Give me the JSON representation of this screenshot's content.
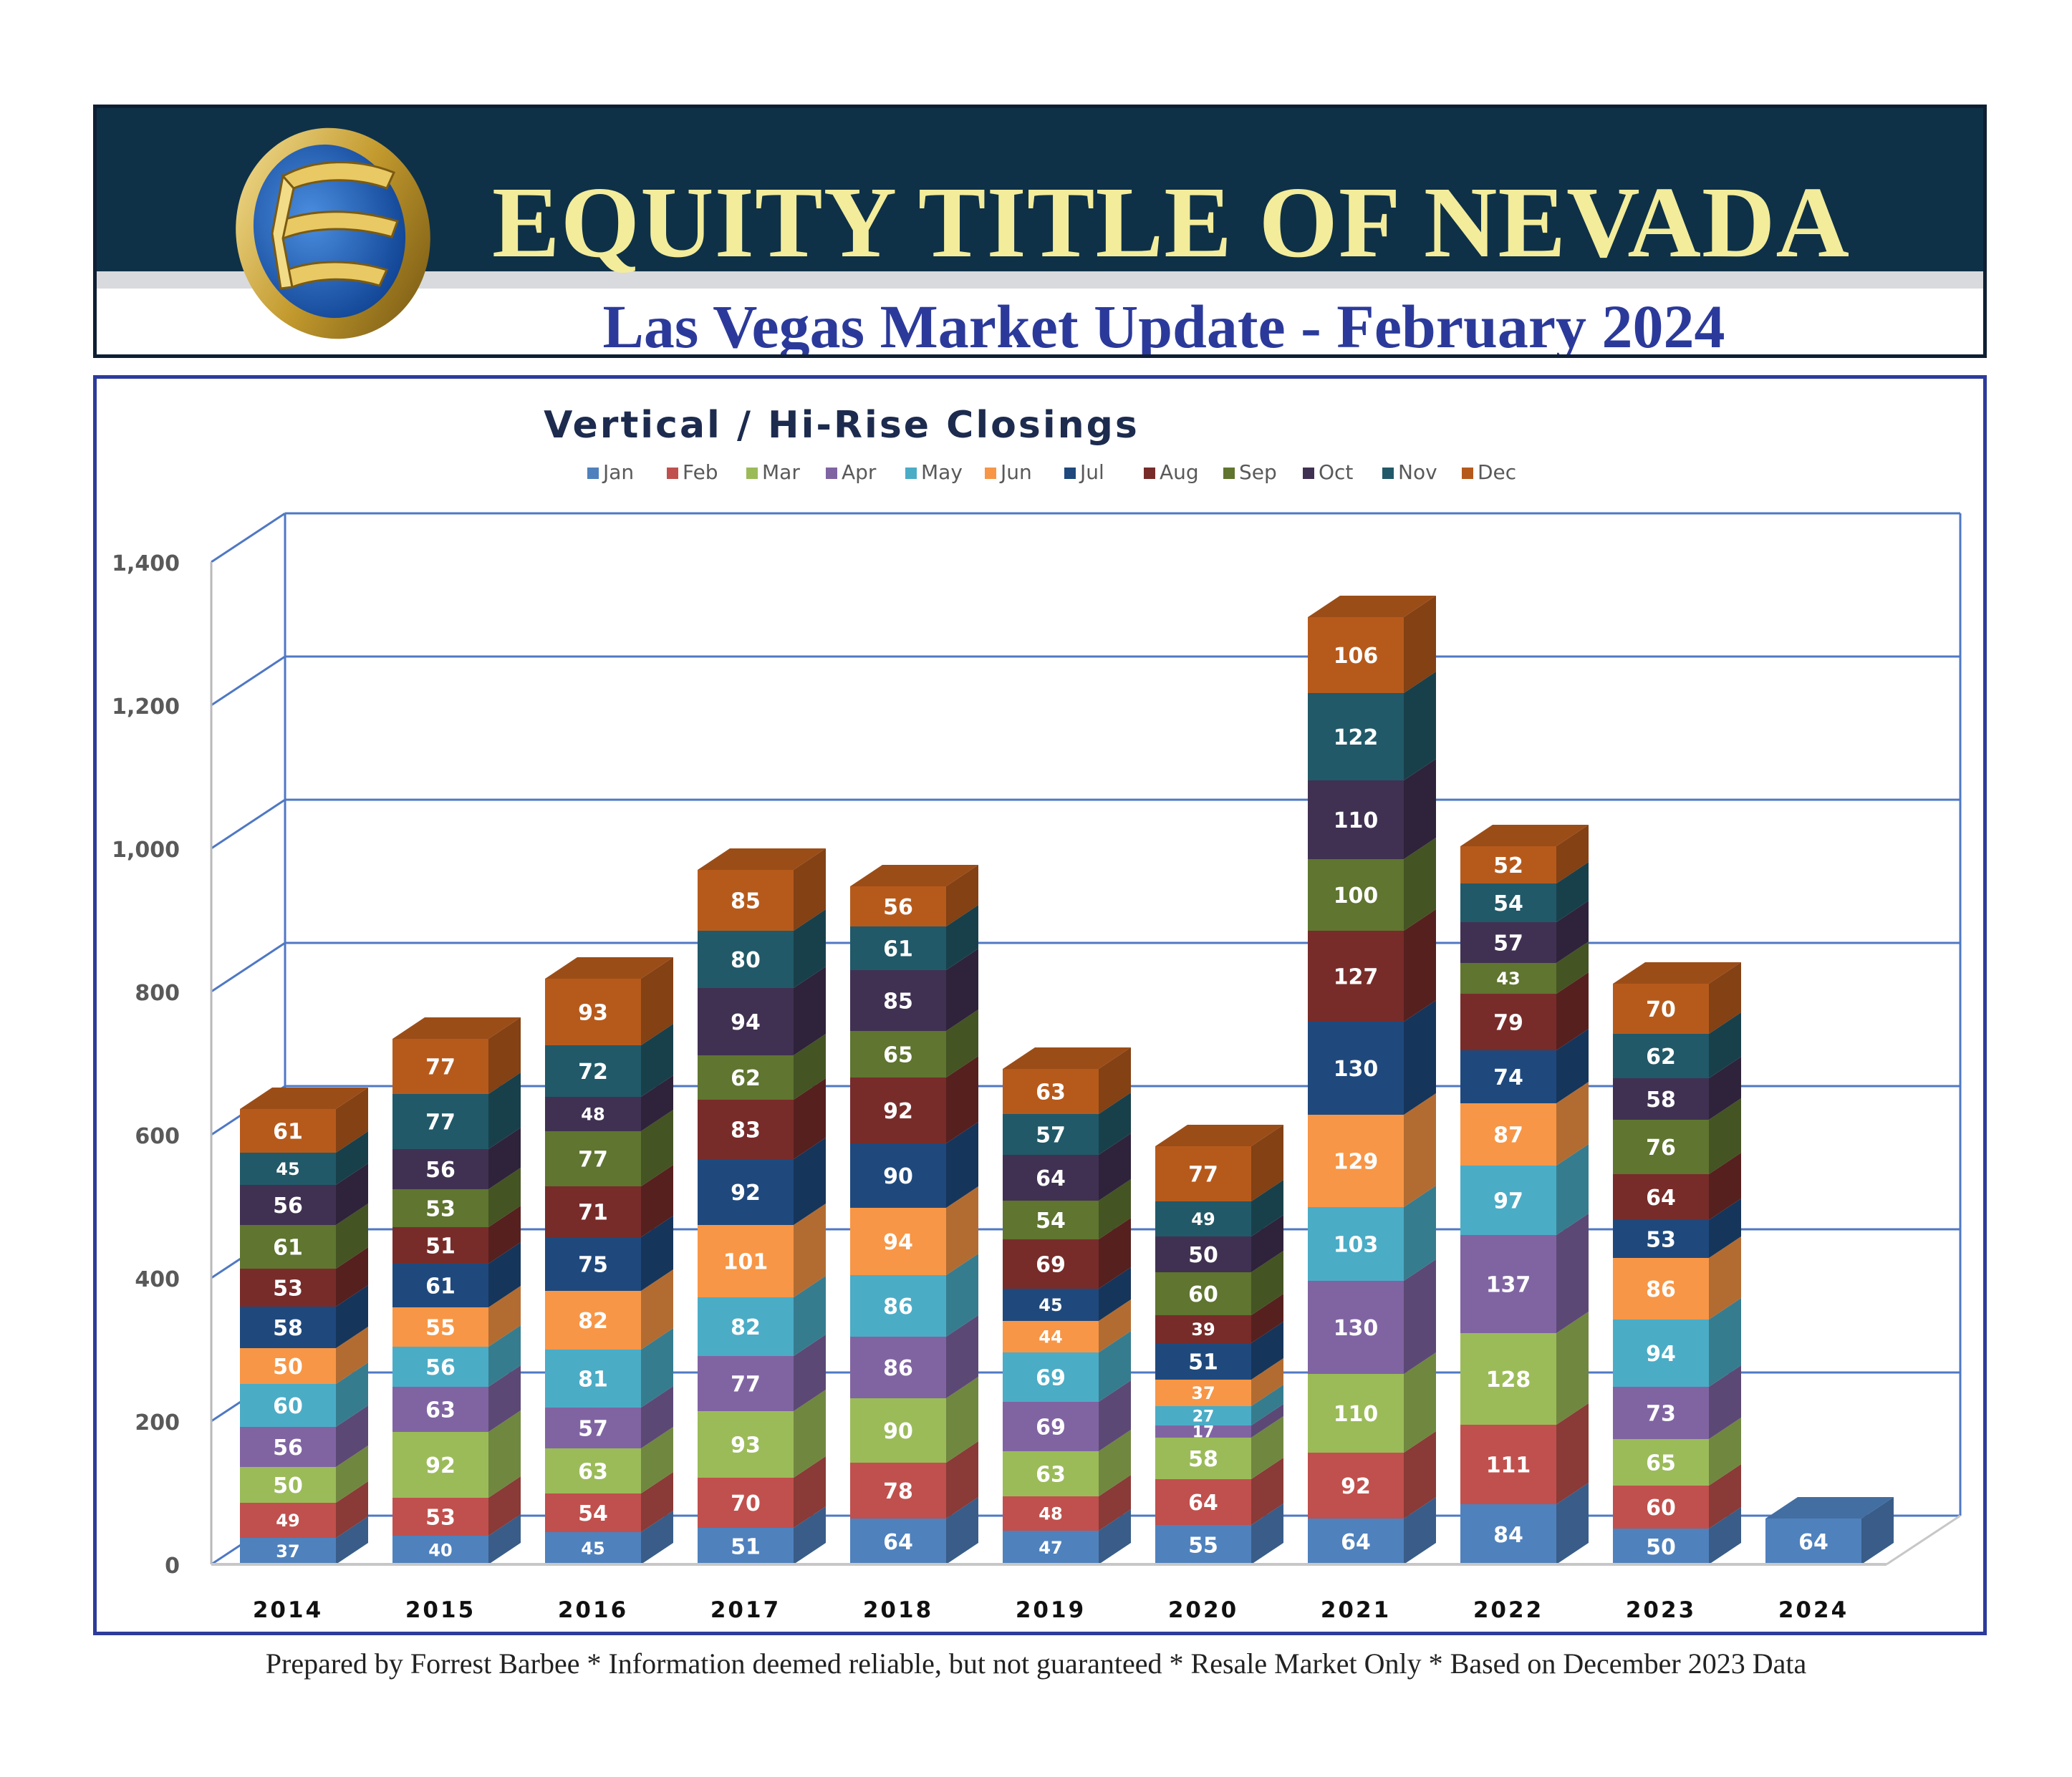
{
  "header": {
    "company": "EQUITY TITLE OF NEVADA",
    "report_title": "Las Vegas Market Update - February 2024"
  },
  "footer": {
    "text": "Prepared by Forrest Barbee * Information deemed reliable, but not guaranteed * Resale Market Only * Based on December 2023 Data"
  },
  "colors": {
    "header_band": "#0e3148",
    "company_text": "#f3ec9a",
    "title_text": "#2b3a9a",
    "frame_border": "#2d3b9b"
  },
  "chart_data": {
    "type": "bar",
    "stacked": true,
    "three_d": true,
    "title": "Vertical / Hi-Rise Closings",
    "xlabel": "",
    "ylabel": "",
    "ylim": [
      0,
      1400
    ],
    "yticks": [
      0,
      200,
      400,
      600,
      800,
      1000,
      1200,
      1400
    ],
    "ytick_labels": [
      "0",
      "200",
      "400",
      "600",
      "800",
      "1,000",
      "1,200",
      "1,400"
    ],
    "grid": true,
    "legend_position": "top",
    "categories": [
      "2014",
      "2015",
      "2016",
      "2017",
      "2018",
      "2019",
      "2020",
      "2021",
      "2022",
      "2023",
      "2024"
    ],
    "series": [
      {
        "name": "Jan",
        "color": "#4f81bd",
        "values": [
          37,
          40,
          45,
          51,
          64,
          47,
          55,
          64,
          84,
          50,
          64
        ]
      },
      {
        "name": "Feb",
        "color": "#c0504d",
        "values": [
          49,
          53,
          54,
          70,
          78,
          48,
          64,
          92,
          111,
          60,
          null
        ]
      },
      {
        "name": "Mar",
        "color": "#9bbb59",
        "values": [
          50,
          92,
          63,
          93,
          90,
          63,
          58,
          110,
          128,
          65,
          null
        ]
      },
      {
        "name": "Apr",
        "color": "#8064a2",
        "values": [
          56,
          63,
          57,
          77,
          86,
          69,
          17,
          130,
          137,
          73,
          null
        ]
      },
      {
        "name": "May",
        "color": "#4bacc6",
        "values": [
          60,
          56,
          81,
          82,
          86,
          69,
          27,
          103,
          97,
          94,
          null
        ]
      },
      {
        "name": "Jun",
        "color": "#f79646",
        "values": [
          50,
          55,
          82,
          101,
          94,
          44,
          37,
          129,
          87,
          86,
          null
        ]
      },
      {
        "name": "Jul",
        "color": "#1f497d",
        "values": [
          58,
          61,
          75,
          92,
          90,
          45,
          51,
          130,
          74,
          53,
          null
        ]
      },
      {
        "name": "Aug",
        "color": "#772c2a",
        "values": [
          53,
          51,
          71,
          83,
          92,
          69,
          39,
          127,
          79,
          64,
          null
        ]
      },
      {
        "name": "Sep",
        "color": "#5f7530",
        "values": [
          61,
          53,
          77,
          62,
          65,
          54,
          60,
          100,
          43,
          76,
          null
        ]
      },
      {
        "name": "Oct",
        "color": "#403152",
        "values": [
          56,
          56,
          48,
          94,
          85,
          64,
          50,
          110,
          57,
          58,
          null
        ]
      },
      {
        "name": "Nov",
        "color": "#215968",
        "values": [
          45,
          77,
          72,
          80,
          61,
          57,
          49,
          122,
          54,
          62,
          null
        ]
      },
      {
        "name": "Dec",
        "color": "#b65a1c",
        "values": [
          61,
          77,
          93,
          85,
          56,
          63,
          77,
          106,
          52,
          70,
          null
        ]
      }
    ]
  }
}
